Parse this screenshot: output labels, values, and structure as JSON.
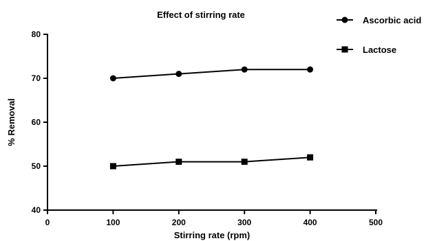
{
  "chart_data": {
    "type": "line",
    "title": "Effect of stirring rate",
    "xlabel": "Stirring rate (rpm)",
    "ylabel": "% Removal",
    "xlim": [
      0,
      500
    ],
    "ylim": [
      40,
      80
    ],
    "xticks": [
      0,
      100,
      200,
      300,
      400,
      500
    ],
    "yticks": [
      40,
      50,
      60,
      70,
      80
    ],
    "grid": false,
    "legend_position": "top-right",
    "series": [
      {
        "name": "Ascorbic acid",
        "marker": "circle",
        "color": "#000000",
        "x": [
          100,
          200,
          300,
          400
        ],
        "y": [
          70,
          71,
          72,
          72
        ]
      },
      {
        "name": "Lactose",
        "marker": "square",
        "color": "#000000",
        "x": [
          100,
          200,
          300,
          400
        ],
        "y": [
          50,
          51,
          51,
          52
        ]
      }
    ]
  }
}
